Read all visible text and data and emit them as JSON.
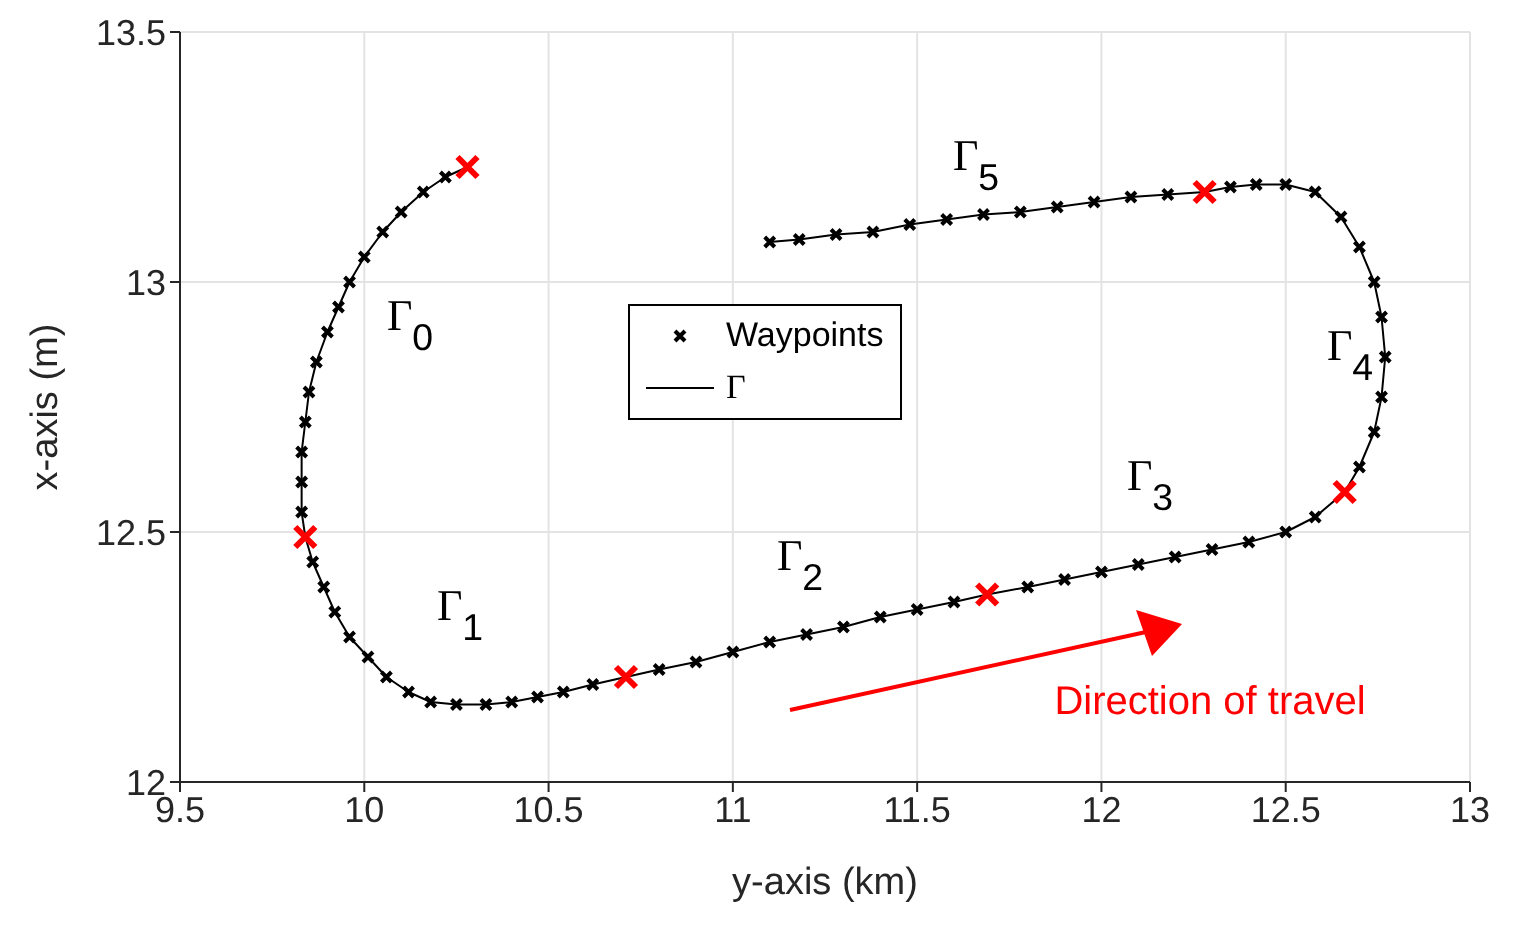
{
  "chart_data": {
    "type": "line",
    "xlabel": "y-axis (km)",
    "ylabel": "x-axis (m)",
    "xlim": [
      9.5,
      13
    ],
    "xticks": [
      9.5,
      10,
      10.5,
      11,
      11.5,
      12,
      12.5,
      13
    ],
    "ylim": [
      12,
      13.5
    ],
    "yticks": [
      12,
      12.5,
      13,
      13.5
    ],
    "grid": true,
    "legend": "center",
    "series": [
      {
        "name": "Waypoints",
        "type": "scatter",
        "marker": "cross",
        "color": "#000000",
        "x": [
          10.22,
          10.16,
          10.1,
          10.05,
          10,
          9.96,
          9.93,
          9.9,
          9.87,
          9.85,
          9.84,
          9.83,
          9.83,
          9.83,
          9.86,
          9.89,
          9.92,
          9.96,
          10.01,
          10.06,
          10.12,
          10.18,
          10.25,
          10.33,
          10.4,
          10.47,
          10.54,
          10.62,
          10.8,
          10.9,
          11,
          11.1,
          11.2,
          11.3,
          11.4,
          11.5,
          11.6,
          11.8,
          11.9,
          12,
          12.1,
          12.2,
          12.3,
          12.4,
          12.5,
          12.58,
          12.7,
          12.74,
          12.76,
          12.77,
          12.76,
          12.74,
          12.7,
          12.65,
          12.58,
          12.5,
          12.42,
          12.35,
          12.18,
          12.08,
          11.98,
          11.88,
          11.78,
          11.68,
          11.58,
          11.48,
          11.38,
          11.28,
          11.18,
          11.1
        ],
        "values": [
          13.21,
          13.18,
          13.14,
          13.1,
          13.05,
          13,
          12.95,
          12.9,
          12.84,
          12.78,
          12.72,
          12.66,
          12.6,
          12.54,
          12.44,
          12.39,
          12.34,
          12.29,
          12.25,
          12.21,
          12.18,
          12.16,
          12.155,
          12.155,
          12.16,
          12.17,
          12.18,
          12.195,
          12.225,
          12.24,
          12.26,
          12.28,
          12.295,
          12.31,
          12.33,
          12.345,
          12.36,
          12.39,
          12.405,
          12.42,
          12.435,
          12.45,
          12.465,
          12.48,
          12.5,
          12.53,
          12.63,
          12.7,
          12.77,
          12.85,
          12.93,
          13,
          13.07,
          13.13,
          13.18,
          13.195,
          13.195,
          13.19,
          13.175,
          13.17,
          13.16,
          13.15,
          13.14,
          13.135,
          13.125,
          13.115,
          13.1,
          13.095,
          13.085,
          13.08
        ]
      },
      {
        "name": "Γ",
        "line_style": "solid",
        "color": "#000000",
        "x": [
          10.28,
          10.22,
          10.16,
          10.1,
          10.05,
          10,
          9.96,
          9.93,
          9.9,
          9.87,
          9.85,
          9.84,
          9.83,
          9.83,
          9.83,
          9.84,
          9.86,
          9.89,
          9.92,
          9.96,
          10.01,
          10.06,
          10.12,
          10.18,
          10.25,
          10.33,
          10.4,
          10.47,
          10.54,
          10.62,
          10.71,
          10.8,
          10.9,
          11,
          11.1,
          11.2,
          11.3,
          11.4,
          11.5,
          11.6,
          11.69,
          11.8,
          11.9,
          12,
          12.1,
          12.2,
          12.3,
          12.4,
          12.5,
          12.58,
          12.66,
          12.7,
          12.74,
          12.76,
          12.77,
          12.76,
          12.74,
          12.7,
          12.65,
          12.58,
          12.5,
          12.42,
          12.35,
          12.28,
          12.18,
          12.08,
          11.98,
          11.88,
          11.78,
          11.68,
          11.58,
          11.48,
          11.38,
          11.28,
          11.18,
          11.1
        ],
        "values": [
          13.23,
          13.21,
          13.18,
          13.14,
          13.1,
          13.05,
          13,
          12.95,
          12.9,
          12.84,
          12.78,
          12.72,
          12.66,
          12.6,
          12.54,
          12.49,
          12.44,
          12.39,
          12.34,
          12.29,
          12.25,
          12.21,
          12.18,
          12.16,
          12.155,
          12.155,
          12.16,
          12.17,
          12.18,
          12.195,
          12.21,
          12.225,
          12.24,
          12.26,
          12.28,
          12.295,
          12.31,
          12.33,
          12.345,
          12.36,
          12.375,
          12.39,
          12.405,
          12.42,
          12.435,
          12.45,
          12.465,
          12.48,
          12.5,
          12.53,
          12.58,
          12.63,
          12.7,
          12.77,
          12.85,
          12.93,
          13,
          13.07,
          13.13,
          13.18,
          13.195,
          13.195,
          13.19,
          13.18,
          13.175,
          13.17,
          13.16,
          13.15,
          13.14,
          13.135,
          13.125,
          13.115,
          13.1,
          13.095,
          13.085,
          13.08
        ]
      },
      {
        "type": "scatter",
        "marker": "cross",
        "color": "#ff0000",
        "x": [
          10.28,
          9.84,
          10.71,
          11.69,
          12.66,
          12.28
        ],
        "values": [
          13.23,
          12.49,
          12.21,
          12.375,
          12.58,
          13.18
        ]
      }
    ],
    "annotations": [
      "Γ$_{0}$",
      "Γ$_{1}$",
      "Γ$_{2}$",
      "Γ$_{3}$",
      "Γ$_{4}$",
      "Γ$_{5}$",
      "Direction of travel"
    ]
  }
}
